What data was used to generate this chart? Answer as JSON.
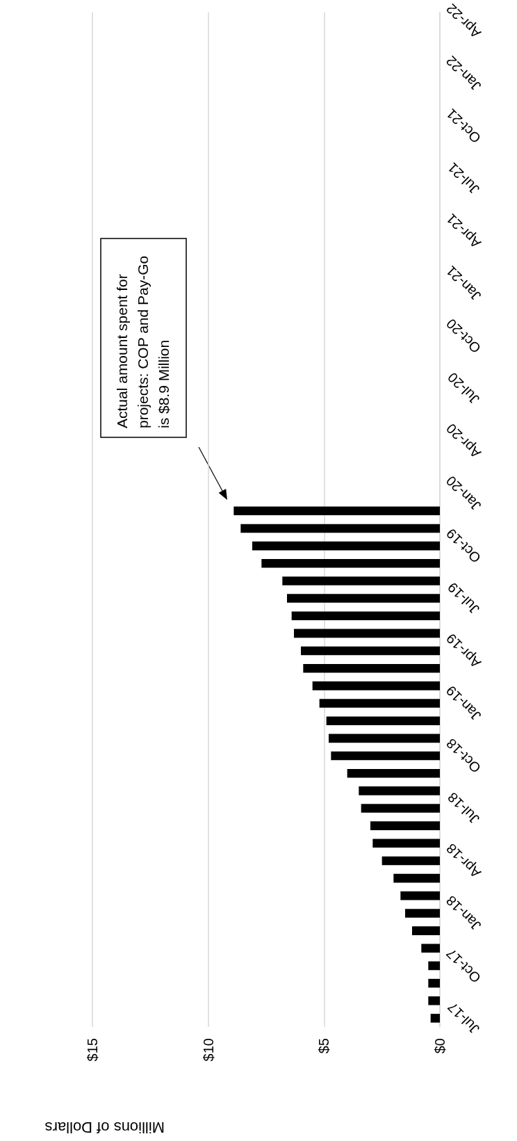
{
  "chart_data": {
    "type": "bar",
    "orientation": "horizontal",
    "xlabel": "Millions of Dollars",
    "categories": [
      "Apr-22",
      null,
      null,
      "Jan-22",
      null,
      null,
      "Oct-21",
      null,
      null,
      "Jul-21",
      null,
      null,
      "Apr-21",
      null,
      null,
      "Jan-21",
      null,
      null,
      "Oct-20",
      null,
      null,
      "Jul-20",
      null,
      null,
      "Apr-20",
      null,
      null,
      "Jan-20",
      null,
      null,
      "Oct-19",
      null,
      null,
      "Jul-19",
      null,
      null,
      "Apr-19",
      null,
      null,
      "Jan-19",
      null,
      null,
      "Oct-18",
      null,
      null,
      "Jul-18",
      null,
      null,
      "Apr-18",
      null,
      null,
      "Jan-18",
      null,
      null,
      "Oct-17",
      null,
      null,
      "Jul-17"
    ],
    "values": [
      null,
      null,
      null,
      null,
      null,
      null,
      null,
      null,
      null,
      null,
      null,
      null,
      null,
      null,
      null,
      null,
      null,
      null,
      null,
      null,
      null,
      null,
      null,
      null,
      null,
      null,
      null,
      null,
      8.9,
      8.6,
      8.1,
      7.7,
      6.8,
      6.6,
      6.4,
      6.3,
      6.0,
      5.9,
      5.5,
      5.2,
      4.9,
      4.8,
      4.7,
      4.0,
      3.5,
      3.4,
      3.0,
      2.9,
      2.5,
      2.0,
      1.7,
      1.5,
      1.2,
      0.8,
      0.5,
      0.5,
      0.5,
      0.4
    ],
    "color": "#000000",
    "xlim": [
      15,
      0
    ],
    "xticks": [
      {
        "value": 15,
        "label": "$15"
      },
      {
        "value": 10,
        "label": "$10"
      },
      {
        "value": 5,
        "label": "$5"
      },
      {
        "value": 0,
        "label": "$0"
      }
    ],
    "grid": "x",
    "annotations": [
      "Actual amount spent for projects: COP and Pay-Go is $8.9 Million"
    ]
  }
}
